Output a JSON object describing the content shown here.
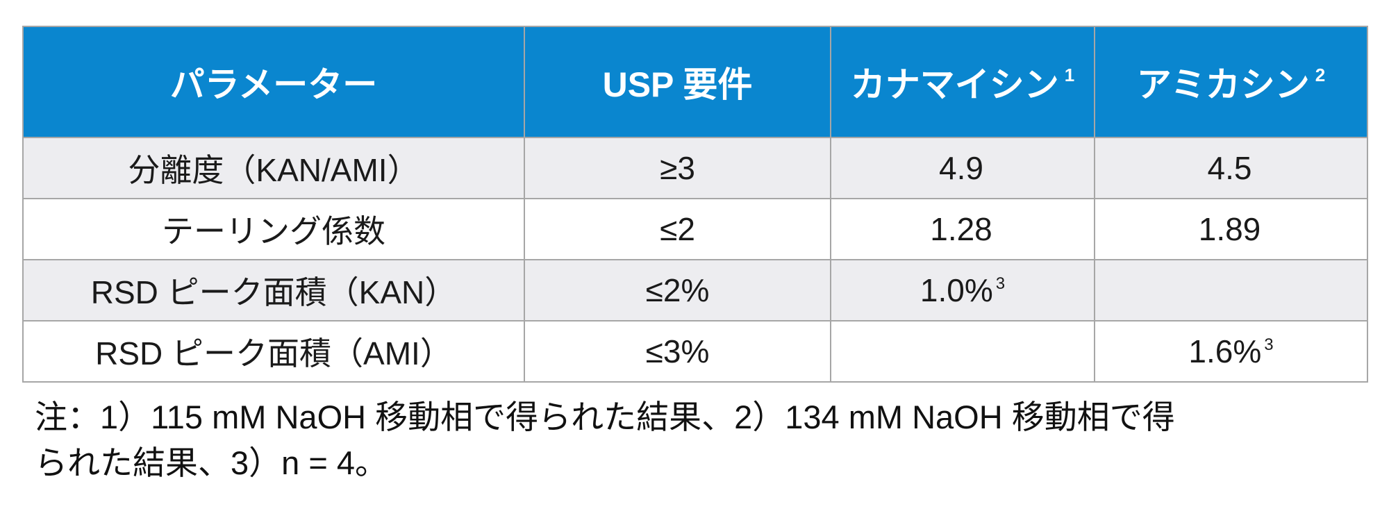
{
  "table": {
    "headers": [
      {
        "label": "パラメーター",
        "sup": ""
      },
      {
        "label": "USP 要件",
        "sup": ""
      },
      {
        "label": "カナマイシン",
        "sup": "1"
      },
      {
        "label": "アミカシン",
        "sup": "2"
      }
    ],
    "rows": [
      {
        "param": "分離度（KAN/AMI）",
        "usp": "≥3",
        "kan": "4.9",
        "kan_sup": "",
        "ami": "4.5",
        "ami_sup": ""
      },
      {
        "param": "テーリング係数",
        "usp": "≤2",
        "kan": "1.28",
        "kan_sup": "",
        "ami": "1.89",
        "ami_sup": ""
      },
      {
        "param": "RSD ピーク面積（KAN）",
        "usp": "≤2%",
        "kan": "1.0%",
        "kan_sup": "3",
        "ami": "",
        "ami_sup": ""
      },
      {
        "param": "RSD ピーク面積（AMI）",
        "usp": "≤3%",
        "kan": "",
        "kan_sup": "",
        "ami": "1.6%",
        "ami_sup": "3"
      }
    ]
  },
  "note": {
    "line1": "注：1）115 mM NaOH 移動相で得られた結果、2）134 mM NaOH 移動相で得",
    "line2": "られた結果、3）n = 4。"
  },
  "colors": {
    "header_bg": "#0a86cf",
    "shaded_row": "#ededf0",
    "border": "#a6a6a6"
  }
}
